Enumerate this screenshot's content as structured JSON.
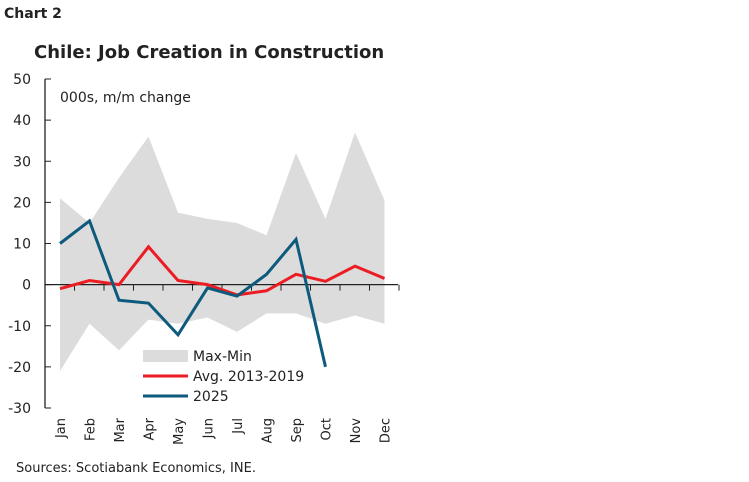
{
  "header": {
    "chart_number": "Chart 2"
  },
  "footer": {
    "sources": "Sources: Scotiabank Economics, INE."
  },
  "chart_data": {
    "type": "line",
    "title": "Chile: Job Creation in Construction",
    "ylabel": "000s, m/m change",
    "ylim": [
      -30,
      50
    ],
    "yticks": [
      -30,
      -20,
      -10,
      0,
      10,
      20,
      30,
      40,
      50
    ],
    "categories": [
      "Jan",
      "Feb",
      "Mar",
      "Apr",
      "May",
      "Jun",
      "Jul",
      "Aug",
      "Sep",
      "Oct",
      "Nov",
      "Dec"
    ],
    "legend_placement": "bottom-center",
    "grid": false,
    "band": {
      "name": "Max-Min",
      "color": "#dcdcdc",
      "max": [
        21,
        15,
        26,
        36,
        17.5,
        16,
        15,
        12,
        32,
        16,
        37,
        20.5
      ],
      "min": [
        -21,
        -9.5,
        -16,
        -8.5,
        -9.5,
        -8,
        -11.5,
        -7,
        -7,
        -9.5,
        -7.5,
        -9.5
      ]
    },
    "series": [
      {
        "name": "Avg. 2013-2019",
        "color": "#ec1c24",
        "values": [
          -1,
          1,
          0,
          9.2,
          1,
          0,
          -2.5,
          -1.5,
          2.5,
          0.8,
          4.5,
          1.5
        ]
      },
      {
        "name": "2025",
        "color": "#0d5a7d",
        "values": [
          10,
          15.5,
          -3.8,
          -4.5,
          -12.2,
          -0.8,
          -2.8,
          2.5,
          11,
          -20,
          null,
          null
        ]
      }
    ]
  }
}
